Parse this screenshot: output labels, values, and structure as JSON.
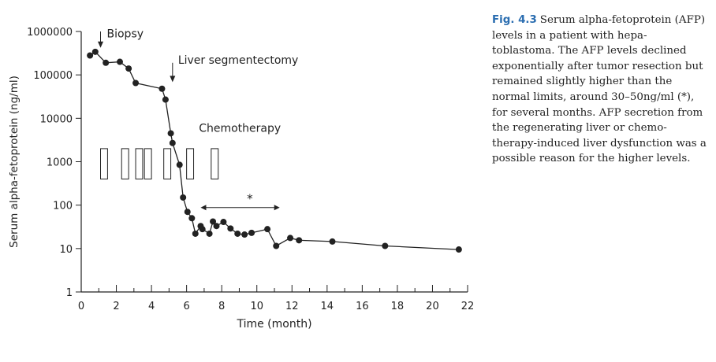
{
  "caption": {
    "label": "Fig. 4.3",
    "text": "Serum alpha-fetoprotein (AFP) levels in a patient with hepa-toblastoma. The AFP levels declined exponentially after tumor resection but remained slightly higher than the normal limits, around 30–50ng/ml (*), for several months. AFP secretion from the regenerating liver or chemo-therapy-induced liver dysfunction was a possible reason for the higher levels."
  },
  "colors": {
    "ink": "#222222",
    "caption_label": "#2a6db0"
  },
  "chart_data": {
    "type": "line",
    "title": "",
    "xlabel": "Time (month)",
    "ylabel": "Serum alpha-fetoprotein (ng/ml)",
    "y_scale": "log",
    "xlim": [
      0,
      22
    ],
    "ylim": [
      1,
      1000000
    ],
    "x_ticks": [
      0,
      2,
      4,
      6,
      8,
      10,
      12,
      14,
      16,
      18,
      20,
      22
    ],
    "x_tick_labels": [
      "0",
      "2",
      "4",
      "6",
      "8",
      "10",
      "12",
      "14",
      "16",
      "18",
      "20",
      "22"
    ],
    "x_minor_step": 1,
    "y_ticks": [
      1,
      10,
      100,
      1000,
      10000,
      100000,
      1000000
    ],
    "y_tick_labels": [
      "1",
      "10",
      "100",
      "1000",
      "10000",
      "100000",
      "1000000"
    ],
    "grid": false,
    "series": [
      {
        "x": [
          0.5,
          0.8,
          1.4,
          2.2,
          2.7,
          3.1,
          4.6,
          4.8,
          5.1,
          5.2,
          5.6,
          5.8,
          6.05,
          6.3,
          6.5,
          6.8,
          6.9,
          7.3,
          7.5,
          7.7,
          8.1,
          8.5,
          8.9,
          9.3,
          9.7,
          10.6,
          11.1,
          11.9,
          12.4,
          14.3,
          17.3,
          21.5
        ],
        "y": [
          280000,
          340000,
          190000,
          200000,
          140000,
          65000,
          48000,
          27000,
          4500,
          2700,
          850,
          150,
          70,
          50,
          22,
          33,
          28,
          22,
          42,
          33,
          41,
          29,
          22,
          21,
          23,
          28,
          11.5,
          17.5,
          15.5,
          14.5,
          11.5,
          9.5
        ]
      }
    ],
    "annotations": [
      {
        "text": "Biopsy",
        "x": 1.1,
        "y_text": 900000,
        "y_arrow_top": 1000000,
        "y_arrow_tip": 420000
      },
      {
        "text": "Liver segmentectomy",
        "x": 5.2,
        "y_text": 100000,
        "y_arrow_top": 190000,
        "y_arrow_tip": 68000
      },
      {
        "text": "Chemotherapy",
        "x": 6.7,
        "y": 6000
      },
      {
        "text": "*",
        "x": 9.6,
        "y": 140
      }
    ],
    "range_arrow": {
      "x_start": 6.8,
      "x_end": 11.3,
      "y": 88
    },
    "chemo_courses": [
      {
        "x_start": 1.1,
        "x_end": 1.5
      },
      {
        "x_start": 2.3,
        "x_end": 2.7
      },
      {
        "x_start": 3.1,
        "x_end": 3.5
      },
      {
        "x_start": 3.6,
        "x_end": 4.0
      },
      {
        "x_start": 4.7,
        "x_end": 5.1
      },
      {
        "x_start": 6.0,
        "x_end": 6.4
      },
      {
        "x_start": 7.4,
        "x_end": 7.8
      }
    ],
    "chemo_box_y_range": [
      400,
      2000
    ]
  }
}
